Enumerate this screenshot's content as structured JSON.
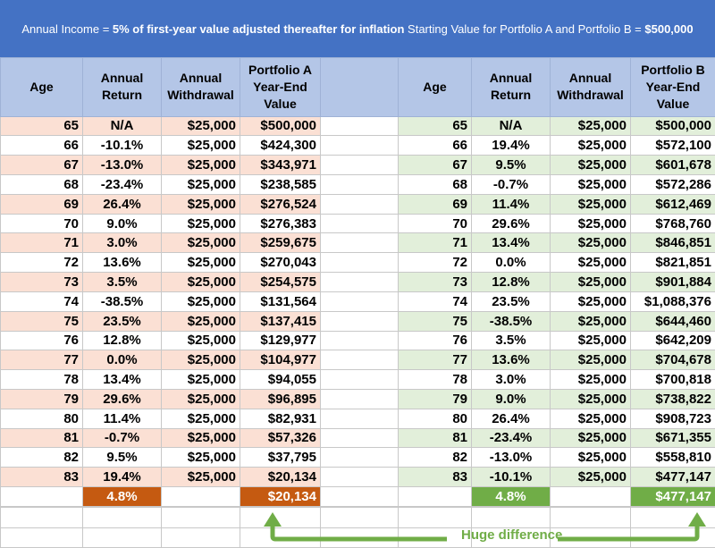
{
  "banner": {
    "part1": "Annual Income = ",
    "part2": "5% of first-year value adjusted thereafter for inflation",
    "part3": " Starting Value for Portfolio A and Portfolio B = ",
    "part4": "$500,000"
  },
  "headers": {
    "age": "Age",
    "return_l1": "Annual",
    "return_l2": "Return",
    "withdraw_l1": "Annual",
    "withdraw_l2": "Withdrawal",
    "portA_l1": "Portfolio A",
    "portA_l2": "Year-End",
    "portA_l3": "Value",
    "portB_l1": "Portfolio B",
    "portB_l2": "Year-End",
    "portB_l3": "Value"
  },
  "portfolioA": [
    [
      "65",
      "N/A",
      "$25,000",
      "$500,000"
    ],
    [
      "66",
      "-10.1%",
      "$25,000",
      "$424,300"
    ],
    [
      "67",
      "-13.0%",
      "$25,000",
      "$343,971"
    ],
    [
      "68",
      "-23.4%",
      "$25,000",
      "$238,585"
    ],
    [
      "69",
      "26.4%",
      "$25,000",
      "$276,524"
    ],
    [
      "70",
      "9.0%",
      "$25,000",
      "$276,383"
    ],
    [
      "71",
      "3.0%",
      "$25,000",
      "$259,675"
    ],
    [
      "72",
      "13.6%",
      "$25,000",
      "$270,043"
    ],
    [
      "73",
      "3.5%",
      "$25,000",
      "$254,575"
    ],
    [
      "74",
      "-38.5%",
      "$25,000",
      "$131,564"
    ],
    [
      "75",
      "23.5%",
      "$25,000",
      "$137,415"
    ],
    [
      "76",
      "12.8%",
      "$25,000",
      "$129,977"
    ],
    [
      "77",
      "0.0%",
      "$25,000",
      "$104,977"
    ],
    [
      "78",
      "13.4%",
      "$25,000",
      "$94,055"
    ],
    [
      "79",
      "29.6%",
      "$25,000",
      "$96,895"
    ],
    [
      "80",
      "11.4%",
      "$25,000",
      "$82,931"
    ],
    [
      "81",
      "-0.7%",
      "$25,000",
      "$57,326"
    ],
    [
      "82",
      "9.5%",
      "$25,000",
      "$37,795"
    ],
    [
      "83",
      "19.4%",
      "$25,000",
      "$20,134"
    ]
  ],
  "portfolioB": [
    [
      "65",
      "N/A",
      "$25,000",
      "$500,000"
    ],
    [
      "66",
      "19.4%",
      "$25,000",
      "$572,100"
    ],
    [
      "67",
      "9.5%",
      "$25,000",
      "$601,678"
    ],
    [
      "68",
      "-0.7%",
      "$25,000",
      "$572,286"
    ],
    [
      "69",
      "11.4%",
      "$25,000",
      "$612,469"
    ],
    [
      "70",
      "29.6%",
      "$25,000",
      "$768,760"
    ],
    [
      "71",
      "13.4%",
      "$25,000",
      "$846,851"
    ],
    [
      "72",
      "0.0%",
      "$25,000",
      "$821,851"
    ],
    [
      "73",
      "12.8%",
      "$25,000",
      "$901,884"
    ],
    [
      "74",
      "23.5%",
      "$25,000",
      "$1,088,376"
    ],
    [
      "75",
      "-38.5%",
      "$25,000",
      "$644,460"
    ],
    [
      "76",
      "3.5%",
      "$25,000",
      "$642,209"
    ],
    [
      "77",
      "13.6%",
      "$25,000",
      "$704,678"
    ],
    [
      "78",
      "3.0%",
      "$25,000",
      "$700,818"
    ],
    [
      "79",
      "9.0%",
      "$25,000",
      "$738,822"
    ],
    [
      "80",
      "26.4%",
      "$25,000",
      "$908,723"
    ],
    [
      "81",
      "-23.4%",
      "$25,000",
      "$671,355"
    ],
    [
      "82",
      "-13.0%",
      "$25,000",
      "$558,810"
    ],
    [
      "83",
      "-10.1%",
      "$25,000",
      "$477,147"
    ]
  ],
  "totals": {
    "a_return": "4.8%",
    "a_value": "$20,134",
    "b_return": "4.8%",
    "b_value": "$477,147"
  },
  "annotation": "Huge difference",
  "colors": {
    "banner": "#4472c4",
    "header": "#b4c6e7",
    "portfolioA_tint": "#fbe0d4",
    "portfolioA_accent": "#c55a11",
    "portfolioB_tint": "#e2efda",
    "portfolioB_accent": "#70ad47"
  }
}
